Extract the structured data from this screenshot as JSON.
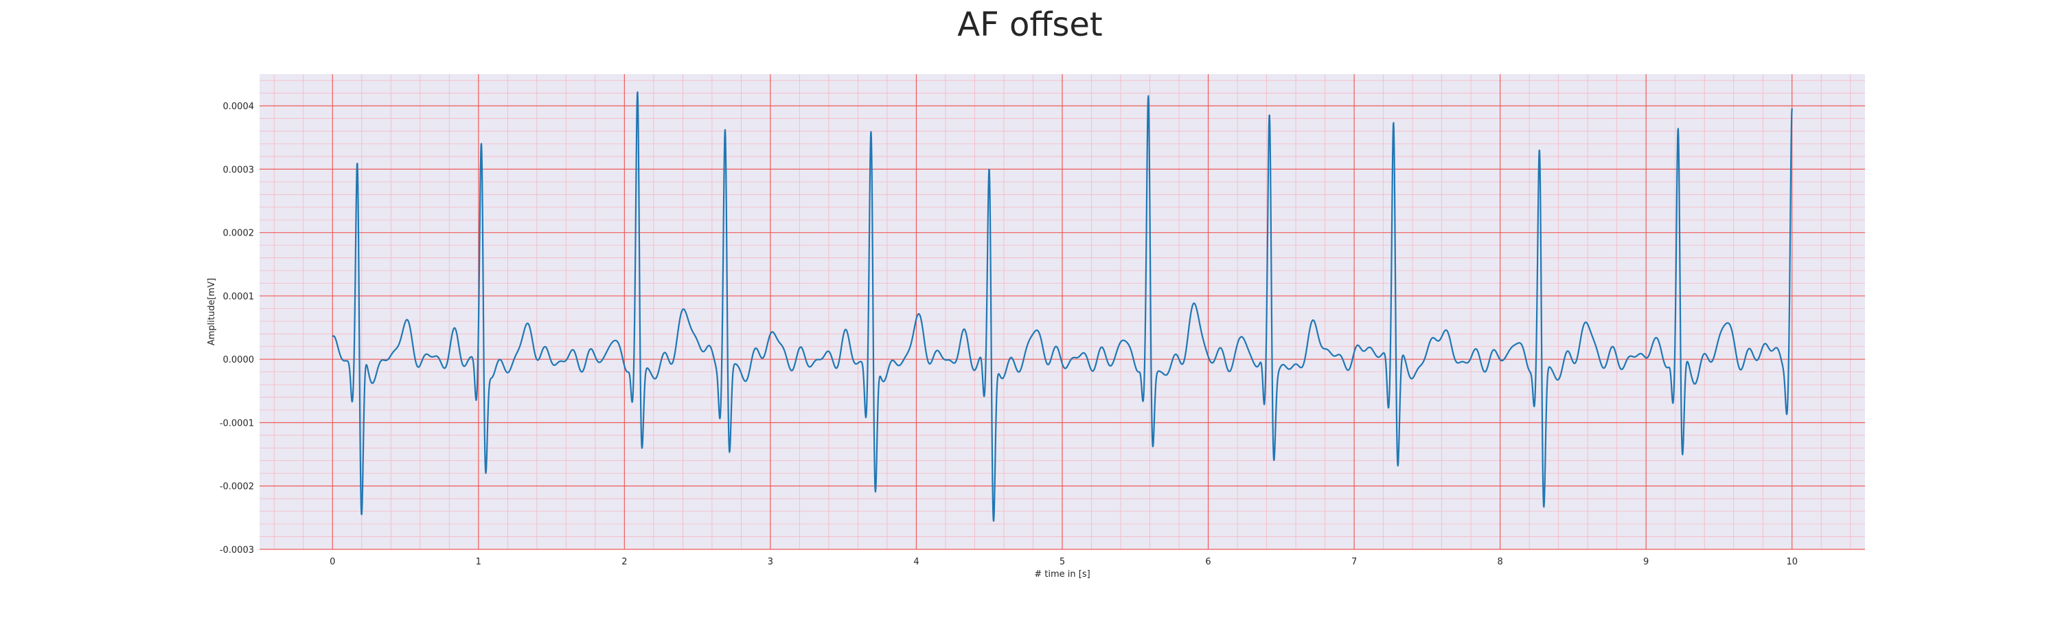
{
  "chart_data": {
    "type": "line",
    "title": "AF offset",
    "xlabel": "# time in [s]",
    "ylabel": "Amplitude[mV]",
    "xlim": [
      -0.5,
      10.5
    ],
    "ylim": [
      -0.0003,
      0.00045
    ],
    "x_ticks": [
      0,
      1,
      2,
      3,
      4,
      5,
      6,
      7,
      8,
      9,
      10
    ],
    "x_tick_labels": [
      "0",
      "1",
      "2",
      "3",
      "4",
      "5",
      "6",
      "7",
      "8",
      "9",
      "10"
    ],
    "y_ticks": [
      -0.0003,
      -0.0002,
      -0.0001,
      0.0,
      0.0001,
      0.0002,
      0.0003,
      0.0004
    ],
    "y_tick_labels": [
      "-0.0003",
      "-0.0002",
      "-0.0001",
      "0.0000",
      "0.0001",
      "0.0002",
      "0.0003",
      "0.0004"
    ],
    "grid": true,
    "minor_grid": true,
    "series": [
      {
        "color": "#1f77b4",
        "beats": [
          {
            "t": 0.17,
            "r": 0.00033,
            "s": -0.00027,
            "q": -6e-05,
            "t_wave": 5e-05
          },
          {
            "t": 1.02,
            "r": 0.000345,
            "s": -0.000185,
            "q": -7e-05,
            "t_wave": 4.5e-05
          },
          {
            "t": 2.09,
            "r": 0.00042,
            "s": -0.00015,
            "q": -7e-05,
            "t_wave": 7e-05
          },
          {
            "t": 2.69,
            "r": 0.00037,
            "s": -0.00016,
            "q": -8e-05,
            "t_wave": 4e-05
          },
          {
            "t": 3.69,
            "r": 0.000365,
            "s": -0.00023,
            "q": -9e-05,
            "t_wave": 5.5e-05
          },
          {
            "t": 4.5,
            "r": 0.000315,
            "s": -0.000265,
            "q": -7e-05,
            "t_wave": 4e-05
          },
          {
            "t": 5.59,
            "r": 0.00041,
            "s": -0.000145,
            "q": -7e-05,
            "t_wave": 7.5e-05
          },
          {
            "t": 6.42,
            "r": 0.00039,
            "s": -0.00015,
            "q": -9e-05,
            "t_wave": 5e-05
          },
          {
            "t": 7.27,
            "r": 0.000405,
            "s": -0.000175,
            "q": -8e-05,
            "t_wave": 5e-05
          },
          {
            "t": 8.27,
            "r": 0.000335,
            "s": -0.000245,
            "q": -7e-05,
            "t_wave": 5e-05
          },
          {
            "t": 9.22,
            "r": 0.000375,
            "s": -0.000165,
            "q": -7e-05,
            "t_wave": 5.5e-05
          },
          {
            "t": 10.0,
            "r": 0.00039,
            "s": 0.0,
            "q": -7e-05,
            "t_wave": 0.0
          }
        ]
      }
    ]
  }
}
